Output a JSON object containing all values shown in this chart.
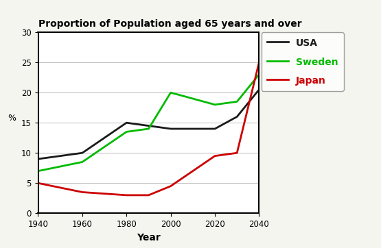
{
  "title": "Proportion of Population aged 65 years and over",
  "xlabel": "Year",
  "ylabel": "%",
  "xlim": [
    1940,
    2040
  ],
  "ylim": [
    0,
    30
  ],
  "xticks": [
    1940,
    1960,
    1980,
    2000,
    2020,
    2040
  ],
  "yticks": [
    0,
    5,
    10,
    15,
    20,
    25,
    30
  ],
  "plot_bg": "#ffffff",
  "outer_bg": "#f5f5f0",
  "usa": {
    "x": [
      1940,
      1960,
      1980,
      1990,
      2000,
      2020,
      2030,
      2040
    ],
    "y": [
      9,
      10,
      15,
      14.5,
      14,
      14,
      16,
      20.5
    ],
    "color": "#1a1a1a",
    "label": "USA",
    "lw": 2.0
  },
  "sweden": {
    "x": [
      1940,
      1960,
      1980,
      1990,
      2000,
      2020,
      2030,
      2040
    ],
    "y": [
      7,
      8.5,
      13.5,
      14,
      20,
      18,
      18.5,
      23
    ],
    "color": "#00bb00",
    "label": "Sweden",
    "lw": 2.0
  },
  "japan": {
    "x": [
      1940,
      1960,
      1980,
      1990,
      2000,
      2020,
      2030,
      2040
    ],
    "y": [
      5,
      3.5,
      3,
      3,
      4.5,
      9.5,
      10,
      25
    ],
    "color": "#cc0000",
    "label": "Japan",
    "lw": 2.0
  }
}
